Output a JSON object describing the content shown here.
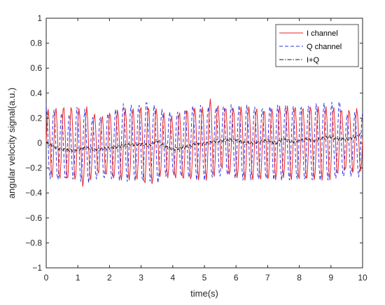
{
  "chart_data": {
    "type": "line",
    "xlabel": "time(s)",
    "ylabel": "angular velocity signal(a.u.)",
    "xlim": [
      0,
      10
    ],
    "ylim": [
      -1,
      1
    ],
    "grid": false,
    "legend_position": "top-right",
    "x_ticks": [
      {
        "value": 0,
        "label": "0"
      },
      {
        "value": 1,
        "label": "1"
      },
      {
        "value": 2,
        "label": "2"
      },
      {
        "value": 3,
        "label": "3"
      },
      {
        "value": 4,
        "label": "4"
      },
      {
        "value": 5,
        "label": "5"
      },
      {
        "value": 6,
        "label": "6"
      },
      {
        "value": 7,
        "label": "7"
      },
      {
        "value": 8,
        "label": "8"
      },
      {
        "value": 9,
        "label": "9"
      },
      {
        "value": 10,
        "label": "10"
      }
    ],
    "y_ticks": [
      {
        "value": 1,
        "label": "1"
      },
      {
        "value": 0.8,
        "label": "0.8"
      },
      {
        "value": 0.6,
        "label": "0.6"
      },
      {
        "value": 0.4,
        "label": "0.4"
      },
      {
        "value": 0.2,
        "label": "0.2"
      },
      {
        "value": 0,
        "label": "0"
      },
      {
        "value": -0.2,
        "label": "−0.2"
      },
      {
        "value": -0.4,
        "label": "−0.4"
      },
      {
        "value": -0.6,
        "label": "−0.6"
      },
      {
        "value": -0.8,
        "label": "−0.8"
      },
      {
        "value": -1,
        "label": "−1"
      }
    ],
    "series": [
      {
        "name": "I channel",
        "color": "#e8242a",
        "style": "solid",
        "x": [
          0.0,
          0.25,
          0.5,
          0.75,
          1.0,
          1.25,
          1.5,
          1.75,
          2.0,
          2.25,
          2.5,
          2.75,
          3.0,
          3.25,
          3.5,
          3.75,
          4.0,
          4.25,
          4.5,
          4.75,
          5.0,
          5.25,
          5.5,
          5.75,
          6.0,
          6.25,
          6.5,
          6.75,
          7.0,
          7.25,
          7.5,
          7.75,
          8.0,
          8.25,
          8.5,
          8.75,
          9.0,
          9.25,
          9.5,
          9.75,
          10.0
        ],
        "upper": [
          0.27,
          0.28,
          0.3,
          0.3,
          0.28,
          0.3,
          0.24,
          0.22,
          0.25,
          0.27,
          0.28,
          0.28,
          0.3,
          0.3,
          0.28,
          0.24,
          0.22,
          0.26,
          0.28,
          0.29,
          0.29,
          0.38,
          0.28,
          0.3,
          0.28,
          0.3,
          0.29,
          0.28,
          0.27,
          0.3,
          0.3,
          0.3,
          0.29,
          0.3,
          0.3,
          0.29,
          0.3,
          0.28,
          0.27,
          0.28,
          0.28
        ],
        "lower": [
          -0.27,
          -0.28,
          -0.3,
          -0.3,
          -0.3,
          -0.38,
          -0.25,
          -0.25,
          -0.28,
          -0.3,
          -0.3,
          -0.3,
          -0.3,
          -0.38,
          -0.27,
          -0.28,
          -0.28,
          -0.3,
          -0.3,
          -0.3,
          -0.3,
          -0.3,
          -0.2,
          -0.26,
          -0.28,
          -0.3,
          -0.3,
          -0.3,
          -0.3,
          -0.3,
          -0.28,
          -0.3,
          -0.3,
          -0.3,
          -0.3,
          -0.3,
          -0.3,
          -0.25,
          -0.22,
          -0.25,
          -0.22
        ]
      },
      {
        "name": "Q channel",
        "color": "#2b35e8",
        "style": "dashed",
        "x": [
          0.0,
          0.25,
          0.5,
          0.75,
          1.0,
          1.25,
          1.5,
          1.75,
          2.0,
          2.25,
          2.5,
          2.75,
          3.0,
          3.25,
          3.5,
          3.75,
          4.0,
          4.25,
          4.5,
          4.75,
          5.0,
          5.25,
          5.5,
          5.75,
          6.0,
          6.25,
          6.5,
          6.75,
          7.0,
          7.25,
          7.5,
          7.75,
          8.0,
          8.25,
          8.5,
          8.75,
          9.0,
          9.25,
          9.5,
          9.75,
          10.0
        ],
        "upper": [
          0.3,
          0.27,
          0.25,
          0.24,
          0.3,
          0.27,
          0.2,
          0.22,
          0.26,
          0.28,
          0.33,
          0.3,
          0.32,
          0.36,
          0.28,
          0.27,
          0.24,
          0.27,
          0.3,
          0.31,
          0.3,
          0.28,
          0.3,
          0.33,
          0.3,
          0.31,
          0.3,
          0.29,
          0.3,
          0.31,
          0.3,
          0.3,
          0.3,
          0.31,
          0.32,
          0.32,
          0.33,
          0.36,
          0.24,
          0.25,
          0.25
        ],
        "lower": [
          -0.28,
          -0.3,
          -0.3,
          -0.3,
          -0.3,
          -0.33,
          -0.3,
          -0.29,
          -0.3,
          -0.3,
          -0.31,
          -0.31,
          -0.31,
          -0.32,
          -0.33,
          -0.27,
          -0.26,
          -0.28,
          -0.29,
          -0.3,
          -0.3,
          -0.28,
          -0.28,
          -0.27,
          -0.29,
          -0.3,
          -0.3,
          -0.3,
          -0.3,
          -0.3,
          -0.3,
          -0.3,
          -0.3,
          -0.31,
          -0.3,
          -0.3,
          -0.3,
          -0.29,
          -0.28,
          -0.27,
          -0.28
        ]
      },
      {
        "name": "I+Q",
        "color": "#1a1a1a",
        "style": "dashdot",
        "x": [
          0.0,
          0.25,
          0.5,
          0.75,
          1.0,
          1.25,
          1.5,
          1.75,
          2.0,
          2.25,
          2.5,
          2.75,
          3.0,
          3.25,
          3.5,
          3.75,
          4.0,
          4.25,
          4.5,
          4.75,
          5.0,
          5.25,
          5.5,
          5.75,
          6.0,
          6.25,
          6.5,
          6.75,
          7.0,
          7.25,
          7.5,
          7.75,
          8.0,
          8.25,
          8.5,
          8.75,
          9.0,
          9.25,
          9.5,
          9.75,
          10.0
        ],
        "y": [
          0.0,
          -0.03,
          -0.05,
          -0.06,
          -0.05,
          -0.04,
          -0.05,
          -0.05,
          -0.04,
          -0.03,
          -0.02,
          -0.01,
          -0.01,
          -0.02,
          0.02,
          -0.03,
          -0.05,
          -0.04,
          -0.03,
          0.0,
          -0.01,
          0.01,
          0.02,
          0.02,
          0.03,
          0.0,
          0.0,
          0.01,
          0.02,
          0.0,
          0.03,
          0.01,
          0.02,
          0.03,
          0.02,
          0.04,
          0.05,
          0.03,
          0.03,
          0.05,
          0.07
        ]
      }
    ]
  }
}
